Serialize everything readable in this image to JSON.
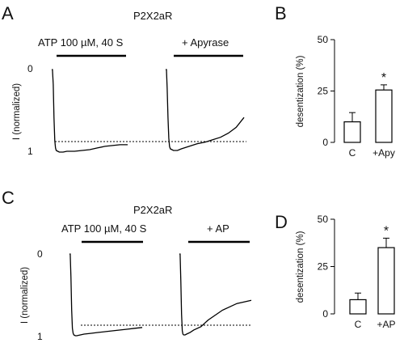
{
  "chart_data": [
    {
      "panel": "A",
      "type": "line",
      "title": "P2X2aR",
      "ylabel": "I (normalized)",
      "y_ticks": [
        "0",
        "1"
      ],
      "stimulus_labels": [
        "ATP 100 µM, 40 S",
        "+ Apyrase"
      ],
      "series": [
        {
          "x": [
            0,
            1,
            2,
            3,
            4,
            5,
            6,
            8,
            10,
            15,
            20,
            30,
            40,
            50,
            60,
            70,
            80,
            90,
            100
          ],
          "values": [
            0.02,
            0.02,
            0.2,
            0.6,
            0.88,
            0.97,
            1.0,
            1.01,
            1.02,
            1.02,
            1.01,
            1.01,
            1.0,
            0.99,
            0.97,
            0.95,
            0.94,
            0.93,
            0.93
          ]
        },
        {
          "x": [
            0,
            1,
            2,
            3,
            4,
            5,
            6,
            8,
            10,
            15,
            20,
            30,
            40,
            50,
            60,
            70,
            80,
            90,
            100
          ],
          "values": [
            0.02,
            0.02,
            0.25,
            0.6,
            0.85,
            0.95,
            0.98,
            0.99,
            1.0,
            1.0,
            0.98,
            0.95,
            0.92,
            0.9,
            0.87,
            0.84,
            0.79,
            0.72,
            0.6
          ]
        }
      ],
      "reference_level": 0.9,
      "ylim": [
        0,
        1
      ]
    },
    {
      "panel": "B",
      "type": "bar",
      "categories": [
        "C",
        "+Apy"
      ],
      "values": [
        10,
        25.5
      ],
      "errors": [
        4.5,
        2.5
      ],
      "significance": [
        "",
        "*"
      ],
      "ylabel": "desentization (%)",
      "y_ticks": [
        "0",
        "25",
        "50"
      ],
      "ylim": [
        0,
        50
      ]
    },
    {
      "panel": "C",
      "type": "line",
      "title": "P2X2aR",
      "ylabel": "I (normalized)",
      "y_ticks": [
        "0",
        "1"
      ],
      "stimulus_labels": [
        "ATP 100 µM, 40 S",
        "+ AP"
      ],
      "series": [
        {
          "x": [
            0,
            1,
            2,
            3,
            4,
            5,
            6,
            8,
            10,
            15,
            20,
            30,
            40,
            50,
            60,
            70,
            80,
            90,
            100
          ],
          "values": [
            0.02,
            0.02,
            0.3,
            0.7,
            0.92,
            0.98,
            1.0,
            1.01,
            1.01,
            1.0,
            0.99,
            0.98,
            0.97,
            0.96,
            0.95,
            0.94,
            0.93,
            0.92,
            0.91
          ]
        },
        {
          "x": [
            0,
            1,
            2,
            3,
            4,
            5,
            6,
            8,
            10,
            15,
            20,
            30,
            40,
            50,
            60,
            70,
            80,
            90,
            100
          ],
          "values": [
            0.02,
            0.02,
            0.35,
            0.75,
            0.95,
            0.99,
            1.0,
            1.0,
            0.99,
            0.97,
            0.94,
            0.9,
            0.82,
            0.76,
            0.7,
            0.66,
            0.62,
            0.6,
            0.58
          ]
        }
      ],
      "reference_level": 0.9,
      "ylim": [
        0,
        1
      ]
    },
    {
      "panel": "D",
      "type": "bar",
      "categories": [
        "C",
        "+AP"
      ],
      "values": [
        7.5,
        35
      ],
      "errors": [
        3.5,
        5
      ],
      "significance": [
        "",
        "*"
      ],
      "ylabel": "desentization (%)",
      "y_ticks": [
        "0",
        "25",
        "50"
      ],
      "ylim": [
        0,
        50
      ]
    }
  ],
  "panel_letters": [
    "A",
    "B",
    "C",
    "D"
  ]
}
